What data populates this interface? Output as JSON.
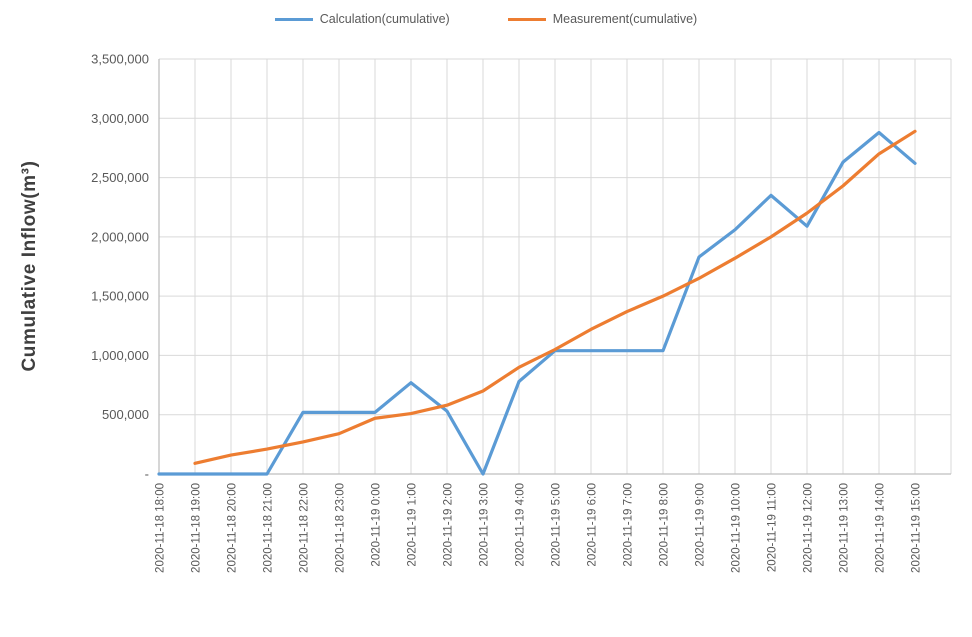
{
  "chart_data": {
    "type": "line",
    "title": "",
    "legend": {
      "position": "top"
    },
    "y_axis": {
      "title": "Cumulative Inflow(m³)",
      "min": 0,
      "max": 3500000,
      "step": 500000,
      "tick_labels": [
        "-",
        "500,000",
        "1,000,000",
        "1,500,000",
        "2,000,000",
        "2,500,000",
        "3,000,000",
        "3,500,000"
      ],
      "grid": true
    },
    "x_axis": {
      "categories": [
        "2020-11-18 18:00",
        "2020-11-18 19:00",
        "2020-11-18 20:00",
        "2020-11-18 21:00",
        "2020-11-18 22:00",
        "2020-11-18 23:00",
        "2020-11-19 0:00",
        "2020-11-19 1:00",
        "2020-11-19 2:00",
        "2020-11-19 3:00",
        "2020-11-19 4:00",
        "2020-11-19 5:00",
        "2020-11-19 6:00",
        "2020-11-19 7:00",
        "2020-11-19 8:00",
        "2020-11-19 9:00",
        "2020-11-19 10:00",
        "2020-11-19 11:00",
        "2020-11-19 12:00",
        "2020-11-19 13:00",
        "2020-11-19 14:00",
        "2020-11-19 15:00"
      ],
      "grid": true
    },
    "series": [
      {
        "name": "Calculation(cumulative)",
        "color": "#5B9BD5",
        "values": [
          0,
          0,
          0,
          0,
          520000,
          520000,
          520000,
          770000,
          530000,
          0,
          780000,
          1040000,
          1040000,
          1040000,
          1040000,
          1830000,
          2060000,
          2350000,
          2090000,
          2630000,
          2880000,
          2620000
        ]
      },
      {
        "name": "Measurement(cumulative)",
        "color": "#ED7D31",
        "values": [
          null,
          90000,
          160000,
          210000,
          270000,
          340000,
          470000,
          510000,
          580000,
          700000,
          900000,
          1050000,
          1220000,
          1370000,
          1500000,
          1650000,
          1820000,
          2000000,
          2200000,
          2430000,
          2700000,
          2890000
        ]
      }
    ]
  },
  "colors": {
    "gridline": "#D9D9D9",
    "axis_line": "#BFBFBF",
    "tick_text": "#595959",
    "title_text": "#3F3F3F"
  }
}
